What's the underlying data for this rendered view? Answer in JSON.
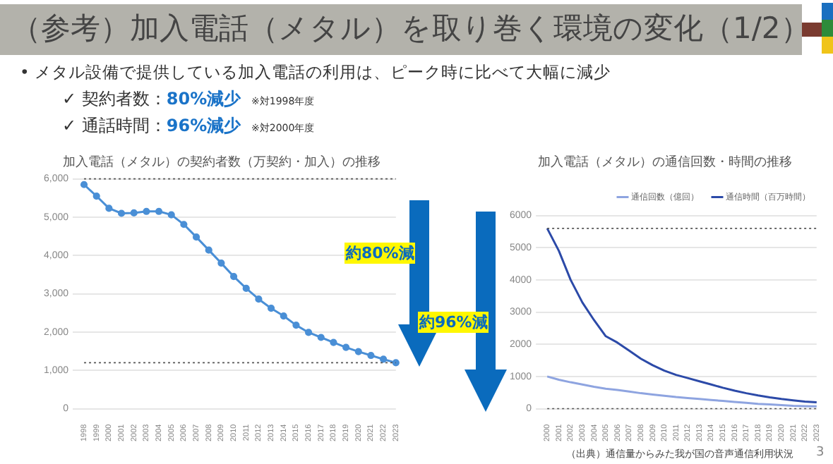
{
  "chart_data": [
    {
      "type": "other",
      "title": "（参考）加入電話（メタル）を取り巻く環境の変化（1/2）",
      "annotations": [
        "• メタル設備で提供している加入電話の利用は、ピーク時に比べて大幅に減少",
        "✓ 契約者数：80%減少",
        "※対1998年度",
        "✓ 通話時間：96%減少",
        "※対2000年度",
        "3"
      ]
    },
    {
      "type": "line",
      "title": "加入電話（メタル）の契約者数（万契約・加入）の推移",
      "categories": [
        "1998",
        "1999",
        "2000",
        "2001",
        "2002",
        "2003",
        "2004",
        "2005",
        "2006",
        "2007",
        "2008",
        "2009",
        "2010",
        "2011",
        "2012",
        "2013",
        "2014",
        "2015",
        "2016",
        "2017",
        "2018",
        "2019",
        "2020",
        "2021",
        "2022",
        "2023"
      ],
      "series": [
        {
          "color": "#4a8fd6",
          "values": [
            5850,
            5550,
            5230,
            5100,
            5110,
            5150,
            5150,
            5060,
            4810,
            4480,
            4140,
            3800,
            3450,
            3140,
            2860,
            2620,
            2420,
            2180,
            1990,
            1860,
            1730,
            1600,
            1490,
            1390,
            1290,
            1200
          ]
        }
      ],
      "ylim": [
        0,
        6000
      ],
      "yticks": [
        {
          "value": 0,
          "label": "0"
        },
        {
          "value": 1000,
          "label": "1,000"
        },
        {
          "value": 2000,
          "label": "2,000"
        },
        {
          "value": 3000,
          "label": "3,000"
        },
        {
          "value": 4000,
          "label": "4,000"
        },
        {
          "value": 5000,
          "label": "5,000"
        },
        {
          "value": 6000,
          "label": "6,000"
        }
      ],
      "grid": "y",
      "marker": "circle",
      "ref_lines": [
        {
          "axis": "y",
          "value": 6000,
          "line_style": "dotted"
        },
        {
          "axis": "y",
          "value": 1200,
          "line_style": "dotted"
        }
      ],
      "annotations": [
        "約80%減"
      ]
    },
    {
      "type": "line",
      "title": "加入電話（メタル）の通信回数・時間の推移",
      "categories": [
        "2000",
        "2001",
        "2002",
        "2003",
        "2004",
        "2005",
        "2006",
        "2007",
        "2008",
        "2009",
        "2010",
        "2011",
        "2012",
        "2013",
        "2014",
        "2015",
        "2016",
        "2017",
        "2018",
        "2019",
        "2020",
        "2021",
        "2022",
        "2023"
      ],
      "series": [
        {
          "name": "通信回数（億回）",
          "color": "#8ea4e0",
          "values": [
            1000,
            900,
            820,
            750,
            680,
            620,
            580,
            530,
            480,
            440,
            400,
            360,
            330,
            300,
            270,
            240,
            210,
            180,
            150,
            130,
            110,
            90,
            80,
            70
          ]
        },
        {
          "name": "通信時間（百万時間）",
          "color": "#2c4aa8",
          "values": [
            5600,
            4900,
            4000,
            3300,
            2750,
            2250,
            2050,
            1800,
            1550,
            1350,
            1180,
            1050,
            950,
            850,
            750,
            650,
            560,
            480,
            410,
            350,
            300,
            260,
            220,
            200
          ]
        }
      ],
      "ylim": [
        0,
        6000
      ],
      "yticks": [
        0,
        1000,
        2000,
        3000,
        4000,
        5000,
        6000
      ],
      "grid": "y",
      "marker": "none",
      "legend": "top right",
      "ref_lines": [
        {
          "axis": "y",
          "value": 5600,
          "line_style": "dotted"
        },
        {
          "axis": "y",
          "value": 0,
          "line_style": "dotted"
        }
      ],
      "annotations": [
        "約96%減",
        "（出典）通信量からみた我が国の音声通信利用状況"
      ]
    }
  ]
}
